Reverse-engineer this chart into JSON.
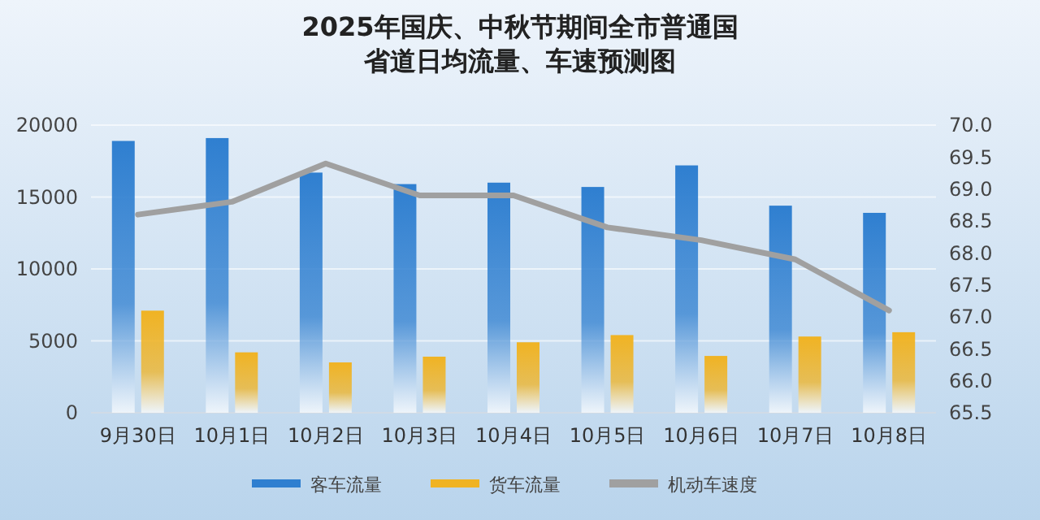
{
  "chart_data": {
    "type": "bar",
    "title": "2025年国庆、中秋节期间全市普通国省道日均流量、车速预测图",
    "categories": [
      "9月30日",
      "10月1日",
      "10月2日",
      "10月3日",
      "10月4日",
      "10月5日",
      "10月6日",
      "10月7日",
      "10月8日"
    ],
    "series": [
      {
        "name": "客车流量",
        "color": "#2f7fd0",
        "values": [
          18900,
          19100,
          16700,
          15900,
          16000,
          15700,
          17200,
          14400,
          13900
        ]
      },
      {
        "name": "货车流量",
        "color": "#f0b323",
        "values": [
          7100,
          4200,
          3500,
          3900,
          4900,
          5400,
          3950,
          5300,
          5600
        ]
      },
      {
        "name": "机动车速度",
        "type": "line",
        "axis": "y2",
        "color": "#a0a0a0",
        "values": [
          68.6,
          68.8,
          69.4,
          68.9,
          68.9,
          68.4,
          68.2,
          67.9,
          67.1
        ]
      }
    ],
    "ylim": [
      0,
      20000
    ],
    "yticks": [
      0,
      5000,
      10000,
      15000,
      20000
    ],
    "y2lim": [
      65.5,
      70
    ],
    "y2ticks": [
      {
        "value": 65.5,
        "label": "65.5"
      },
      {
        "value": 66,
        "label": "66.0"
      },
      {
        "value": 66.5,
        "label": "66.5"
      },
      {
        "value": 67,
        "label": "67.0"
      },
      {
        "value": 67.5,
        "label": "67.5"
      },
      {
        "value": 68,
        "label": "68.0"
      },
      {
        "value": 68.5,
        "label": "68.5"
      },
      {
        "value": 69,
        "label": "69.0"
      },
      {
        "value": 69.5,
        "label": "69.5"
      },
      {
        "value": 70,
        "label": "70.0"
      }
    ],
    "grid": "y",
    "legend": "bottom"
  }
}
